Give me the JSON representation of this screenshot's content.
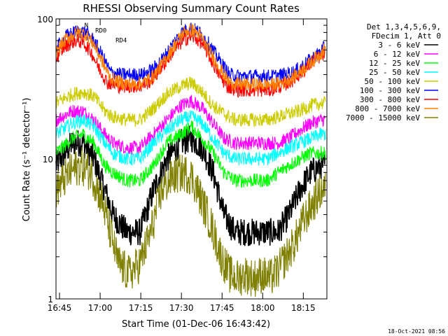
{
  "chart_data": {
    "type": "line",
    "title": "RHESSI Observing Summary Count Rates",
    "xlabel": "Start Time (01-Dec-06 16:43:42)",
    "ylabel": "Count Rate (s⁻¹ detector⁻¹)",
    "yscale": "log",
    "ylim": [
      1,
      100
    ],
    "x_unit": "minutes after 16:43:42",
    "xlim": [
      0,
      100
    ],
    "x_ticks": [
      {
        "t": 1.3,
        "label": "16:45"
      },
      {
        "t": 16.3,
        "label": "17:00"
      },
      {
        "t": 31.3,
        "label": "17:15"
      },
      {
        "t": 46.3,
        "label": "17:30"
      },
      {
        "t": 61.3,
        "label": "17:45"
      },
      {
        "t": 76.3,
        "label": "18:00"
      },
      {
        "t": 91.3,
        "label": "18:15"
      }
    ],
    "y_ticks": [
      {
        "v": 1,
        "label": "1"
      },
      {
        "v": 10,
        "label": "10"
      },
      {
        "v": 100,
        "label": "100"
      }
    ],
    "legend_header": [
      "Det 1,3,4,5,6,9,",
      "FDecim 1, Att 0"
    ],
    "legend_position": "right",
    "series": [
      {
        "name": "3 - 6 keV",
        "color": "#000000",
        "x": [
          0,
          6,
          10,
          14,
          18,
          21,
          26,
          31,
          36,
          41,
          46,
          50,
          54,
          58,
          62,
          66,
          70,
          74,
          78,
          82,
          86,
          90,
          94,
          98
        ],
        "y": [
          9,
          13,
          13,
          10,
          6,
          4,
          3,
          3,
          6,
          10,
          13,
          14,
          12,
          8,
          4,
          3,
          3,
          3,
          3,
          3,
          4,
          6,
          8,
          9
        ]
      },
      {
        "name": "6 - 12 keV",
        "color": "#ff00ff",
        "x": [
          0,
          6,
          10,
          14,
          18,
          21,
          26,
          31,
          36,
          41,
          46,
          50,
          54,
          58,
          62,
          66,
          70,
          74,
          78,
          82,
          86,
          90,
          94,
          98
        ],
        "y": [
          19,
          22,
          22,
          19,
          15,
          13,
          12,
          12,
          15,
          19,
          24,
          26,
          23,
          18,
          14,
          13,
          13,
          13,
          13,
          13,
          14,
          16,
          18,
          19
        ]
      },
      {
        "name": "12 - 25 keV",
        "color": "#00ff00",
        "x": [
          0,
          6,
          10,
          14,
          18,
          21,
          26,
          31,
          36,
          41,
          46,
          50,
          54,
          58,
          62,
          66,
          70,
          74,
          78,
          82,
          86,
          90,
          94,
          98
        ],
        "y": [
          11,
          14,
          15,
          13,
          9,
          8,
          7,
          7,
          9,
          13,
          15,
          17,
          14,
          11,
          8,
          7,
          7,
          7,
          7,
          8,
          9,
          10,
          11,
          11
        ]
      },
      {
        "name": "25 - 50 keV",
        "color": "#00ffff",
        "x": [
          0,
          6,
          10,
          14,
          18,
          21,
          26,
          31,
          36,
          41,
          46,
          50,
          54,
          58,
          62,
          66,
          70,
          74,
          78,
          82,
          86,
          90,
          94,
          98
        ],
        "y": [
          15,
          18,
          19,
          17,
          13,
          11,
          10,
          10,
          13,
          16,
          19,
          20,
          18,
          14,
          11,
          10,
          10,
          10,
          10,
          11,
          12,
          13,
          14,
          15
        ]
      },
      {
        "name": "50 - 100 keV",
        "color": "#cccc00",
        "x": [
          0,
          6,
          10,
          14,
          18,
          21,
          26,
          31,
          36,
          41,
          46,
          50,
          54,
          58,
          62,
          66,
          70,
          74,
          78,
          82,
          86,
          90,
          94,
          98
        ],
        "y": [
          25,
          29,
          30,
          28,
          22,
          20,
          19,
          19,
          23,
          29,
          33,
          35,
          30,
          24,
          21,
          19,
          19,
          19,
          19,
          20,
          21,
          22,
          24,
          25
        ]
      },
      {
        "name": "100 - 300 keV",
        "color": "#0000ff",
        "x": [
          0,
          4,
          8,
          11,
          14,
          17,
          20,
          24,
          28,
          32,
          36,
          40,
          44,
          47,
          50,
          53,
          56,
          60,
          64,
          68,
          72,
          76,
          80,
          84,
          88,
          92,
          96,
          99
        ],
        "y": [
          62,
          76,
          82,
          80,
          70,
          55,
          42,
          40,
          40,
          40,
          44,
          54,
          70,
          82,
          86,
          80,
          68,
          52,
          40,
          39,
          39,
          39,
          39,
          40,
          42,
          48,
          55,
          62
        ]
      },
      {
        "name": "300 - 800 keV",
        "color": "#ff0000",
        "x": [
          0,
          3,
          7,
          10,
          13,
          16,
          19,
          23,
          27,
          31,
          35,
          39,
          43,
          47,
          50,
          53,
          56,
          59,
          63,
          67,
          71,
          75,
          79,
          83,
          87,
          91,
          95,
          99
        ],
        "y": [
          52,
          63,
          70,
          68,
          58,
          44,
          35,
          33,
          33,
          33,
          36,
          45,
          58,
          70,
          75,
          70,
          57,
          44,
          33,
          31,
          31,
          31,
          31,
          33,
          36,
          42,
          50,
          56
        ]
      },
      {
        "name": "800 - 7000 keV",
        "color": "#ff8000",
        "x": [
          0,
          4,
          8,
          11,
          14,
          17,
          20,
          24,
          28,
          32,
          36,
          40,
          44,
          47,
          50,
          53,
          56,
          60,
          64,
          68,
          72,
          76,
          80,
          84,
          88,
          92,
          96,
          99
        ],
        "y": [
          58,
          73,
          80,
          78,
          66,
          50,
          38,
          35,
          34,
          35,
          39,
          50,
          66,
          80,
          84,
          77,
          62,
          46,
          35,
          34,
          34,
          34,
          34,
          35,
          39,
          45,
          53,
          60
        ]
      },
      {
        "name": "7000 - 15000 keV",
        "color": "#808000",
        "x": [
          0,
          5,
          9,
          13,
          17,
          20,
          23,
          27,
          31,
          35,
          39,
          43,
          47,
          50,
          53,
          57,
          61,
          64,
          67,
          70,
          73,
          76,
          79,
          82,
          85,
          88,
          91,
          94,
          98
        ],
        "y": [
          6,
          8,
          9,
          8,
          5,
          3,
          1.8,
          1.5,
          1.8,
          3,
          6,
          7.5,
          8,
          7.5,
          5.5,
          3.5,
          2,
          1.5,
          1.4,
          1.5,
          1.4,
          1.5,
          1.4,
          1.6,
          2,
          2.5,
          3.5,
          4.5,
          6
        ]
      }
    ],
    "annotations": [
      {
        "label": "RD0",
        "t": 14.5,
        "v": 80
      },
      {
        "label": "RD4",
        "t": 22,
        "v": 68
      },
      {
        "label": "N",
        "t": 10.5,
        "v": 87
      }
    ],
    "footer_date": "18-Oct-2021 08:56"
  }
}
